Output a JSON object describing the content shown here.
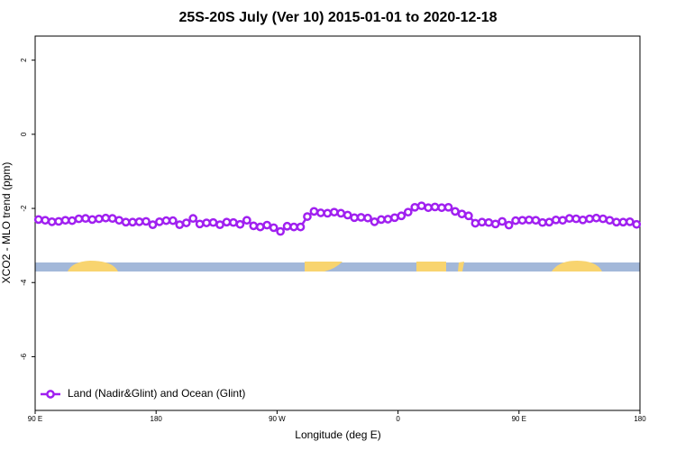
{
  "chart_data": {
    "type": "line",
    "title": "25S-20S July (Ver 10)   2015-01-01 to 2020-12-18",
    "x_label": "Longitude (deg E)",
    "y_label": "XCO2 - MLO trend (ppm)",
    "xlim": [
      90,
      540
    ],
    "ylim": [
      -7.45,
      2.65
    ],
    "xticks": [
      {
        "value": 90,
        "label": "90 E"
      },
      {
        "value": 180,
        "label": "180"
      },
      {
        "value": 270,
        "label": "90 W"
      },
      {
        "value": 360,
        "label": "0"
      },
      {
        "value": 450,
        "label": "90 E"
      },
      {
        "value": 540,
        "label": "180"
      }
    ],
    "yticks": [
      -6,
      -4,
      -2,
      0,
      2
    ],
    "legend": "bottom-left",
    "series": [
      {
        "name": "Land (Nadir&Glint) and Ocean (Glint)",
        "color": "#a020f0",
        "x": [
          92.5,
          97.5,
          102.5,
          107.5,
          112.5,
          117.5,
          122.5,
          127.5,
          132.5,
          137.5,
          142.5,
          147.5,
          152.5,
          157.5,
          162.5,
          167.5,
          172.5,
          177.5,
          182.5,
          187.5,
          192.5,
          197.5,
          202.5,
          207.5,
          212.5,
          217.5,
          222.5,
          227.5,
          232.5,
          237.5,
          242.5,
          247.5,
          252.5,
          257.5,
          262.5,
          267.5,
          272.5,
          277.5,
          282.5,
          287.5,
          292.5,
          297.5,
          302.5,
          307.5,
          312.5,
          317.5,
          322.5,
          327.5,
          332.5,
          337.5,
          342.5,
          347.5,
          352.5,
          357.5,
          362.5,
          367.5,
          372.5,
          377.5,
          382.5,
          387.5,
          392.5,
          397.5,
          402.5,
          407.5,
          412.5,
          417.5,
          422.5,
          427.5,
          432.5,
          437.5,
          442.5,
          447.5,
          452.5,
          457.5,
          462.5,
          467.5,
          472.5,
          477.5,
          482.5,
          487.5,
          492.5,
          497.5,
          502.5,
          507.5,
          512.5,
          517.5,
          522.5,
          527.5,
          532.5,
          537.5
        ],
        "values": [
          -2.3,
          -2.32,
          -2.36,
          -2.35,
          -2.32,
          -2.33,
          -2.28,
          -2.27,
          -2.3,
          -2.28,
          -2.26,
          -2.27,
          -2.32,
          -2.37,
          -2.37,
          -2.36,
          -2.35,
          -2.44,
          -2.36,
          -2.33,
          -2.33,
          -2.44,
          -2.39,
          -2.27,
          -2.42,
          -2.39,
          -2.38,
          -2.44,
          -2.37,
          -2.38,
          -2.43,
          -2.32,
          -2.47,
          -2.5,
          -2.45,
          -2.52,
          -2.62,
          -2.48,
          -2.5,
          -2.5,
          -2.22,
          -2.08,
          -2.12,
          -2.13,
          -2.1,
          -2.13,
          -2.18,
          -2.25,
          -2.24,
          -2.26,
          -2.36,
          -2.3,
          -2.29,
          -2.25,
          -2.2,
          -2.1,
          -1.97,
          -1.93,
          -1.98,
          -1.96,
          -1.98,
          -1.97,
          -2.08,
          -2.15,
          -2.2,
          -2.4,
          -2.37,
          -2.38,
          -2.42,
          -2.35,
          -2.45,
          -2.33,
          -2.32,
          -2.31,
          -2.32,
          -2.38,
          -2.37,
          -2.31,
          -2.32,
          -2.27,
          -2.28,
          -2.31,
          -2.28,
          -2.26,
          -2.28,
          -2.32,
          -2.37,
          -2.37,
          -2.36,
          -2.43
        ]
      }
    ]
  }
}
